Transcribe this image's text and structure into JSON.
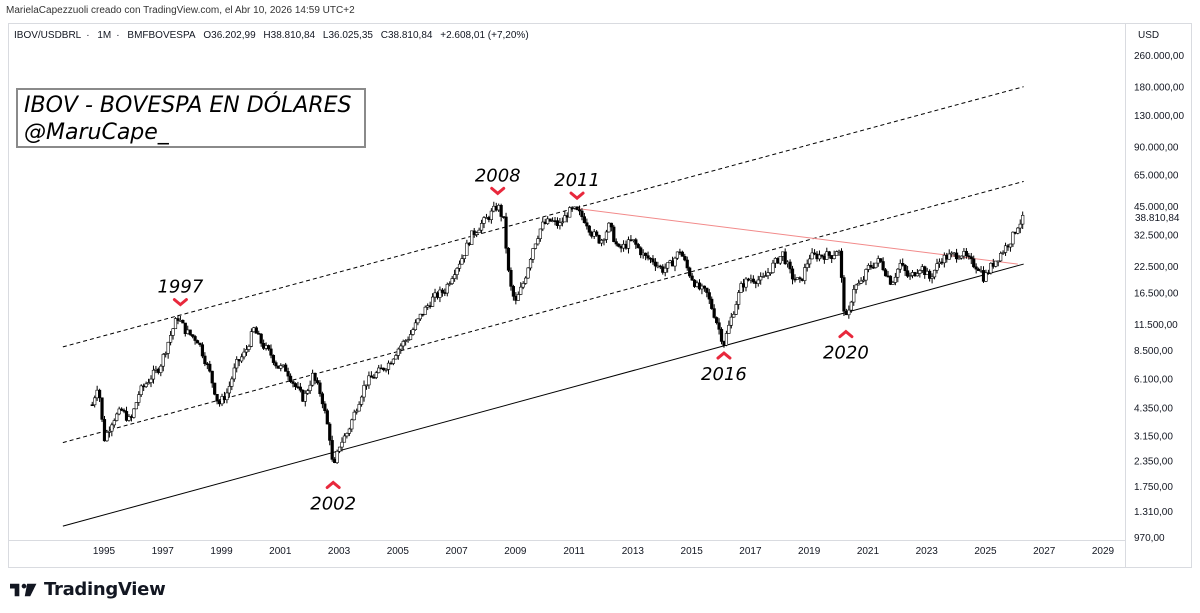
{
  "credit": "MarielaCapezzuoli creado con TradingView.com, el Abr 10, 2026 14:59 UTC+2",
  "legend": {
    "symbol": "IBOV/USDBRL",
    "interval": "1M",
    "exchange": "BMFBOVESPA",
    "open": "O36.202,99",
    "high": "H38.810,84",
    "low": "L36.025,35",
    "close": "C38.810,84",
    "change": "+2.608,01 (+7,20%)"
  },
  "currency": "USD",
  "title_lines": [
    "IBOV - BOVESPA EN DÓLARES",
    "@MaruCape_"
  ],
  "footer": {
    "brand": "TradingView"
  },
  "colors": {
    "up": "#ffffff",
    "down": "#000000",
    "marker": "#e8283c",
    "resistance": "#f28a8a",
    "channel": "#000000",
    "grid_border": "#d9dbe0"
  },
  "chart_data": {
    "type": "candlestick-line",
    "title": "IBOV - BOVESPA EN DÓLARES",
    "scale": "log",
    "ylim": [
      970,
      260000
    ],
    "xlim": [
      1993.5,
      2030.0
    ],
    "y_tick_labels": [
      "260.000,00",
      "180.000,00",
      "130.000,00",
      "90.000,00",
      "65.000,00",
      "45.000,00",
      "32.500,00",
      "22.500,00",
      "16.500,00",
      "11.500,00",
      "8.500,00",
      "6.100,00",
      "4.350,00",
      "3.150,00",
      "2.350,00",
      "1.750,00",
      "1.310,00",
      "970,00"
    ],
    "y_ticks": [
      260000,
      180000,
      130000,
      90000,
      65000,
      45000,
      32500,
      22500,
      16500,
      11500,
      8500,
      6100,
      4350,
      3150,
      2350,
      1750,
      1310,
      970
    ],
    "x_tick_labels": [
      "1995",
      "1997",
      "1999",
      "2001",
      "2003",
      "2005",
      "2007",
      "2009",
      "2011",
      "2013",
      "2015",
      "2017",
      "2019",
      "2021",
      "2023",
      "2025",
      "2027",
      "2029"
    ],
    "x_ticks": [
      1995,
      1997,
      1999,
      2001,
      2003,
      2005,
      2007,
      2009,
      2011,
      2013,
      2015,
      2017,
      2019,
      2021,
      2023,
      2025,
      2027,
      2029
    ],
    "last_price": 38810.84,
    "last_price_label": "38.810,84",
    "price_path": [
      [
        1994.6,
        4500
      ],
      [
        1994.8,
        5800
      ],
      [
        1995.0,
        3000
      ],
      [
        1995.3,
        3800
      ],
      [
        1995.6,
        4200
      ],
      [
        1995.9,
        3700
      ],
      [
        1996.2,
        5200
      ],
      [
        1996.6,
        6200
      ],
      [
        1996.9,
        7000
      ],
      [
        1997.2,
        9500
      ],
      [
        1997.5,
        12500
      ],
      [
        1997.8,
        10500
      ],
      [
        1998.2,
        9500
      ],
      [
        1998.6,
        6500
      ],
      [
        1998.9,
        4500
      ],
      [
        1999.2,
        5200
      ],
      [
        1999.5,
        7200
      ],
      [
        1999.8,
        8200
      ],
      [
        2000.1,
        10800
      ],
      [
        2000.4,
        9000
      ],
      [
        2000.7,
        8000
      ],
      [
        2000.9,
        7000
      ],
      [
        2001.2,
        6800
      ],
      [
        2001.5,
        5600
      ],
      [
        2001.8,
        4800
      ],
      [
        2002.1,
        6300
      ],
      [
        2002.4,
        5000
      ],
      [
        2002.7,
        3000
      ],
      [
        2002.8,
        2050
      ],
      [
        2003.0,
        2800
      ],
      [
        2003.3,
        3300
      ],
      [
        2003.6,
        4400
      ],
      [
        2003.9,
        5800
      ],
      [
        2004.3,
        6500
      ],
      [
        2004.7,
        7300
      ],
      [
        2005.0,
        8600
      ],
      [
        2005.4,
        10000
      ],
      [
        2005.8,
        12800
      ],
      [
        2006.2,
        15500
      ],
      [
        2006.6,
        17000
      ],
      [
        2006.9,
        21000
      ],
      [
        2007.2,
        25000
      ],
      [
        2007.5,
        32000
      ],
      [
        2007.8,
        36000
      ],
      [
        2008.1,
        40000
      ],
      [
        2008.4,
        45500
      ],
      [
        2008.6,
        38000
      ],
      [
        2008.8,
        18500
      ],
      [
        2009.0,
        14500
      ],
      [
        2009.3,
        19000
      ],
      [
        2009.6,
        28000
      ],
      [
        2009.9,
        36000
      ],
      [
        2010.2,
        38000
      ],
      [
        2010.5,
        36000
      ],
      [
        2010.8,
        42000
      ],
      [
        2011.0,
        43000
      ],
      [
        2011.2,
        41000
      ],
      [
        2011.4,
        38000
      ],
      [
        2011.6,
        33000
      ],
      [
        2011.9,
        30000
      ],
      [
        2012.2,
        36000
      ],
      [
        2012.5,
        27000
      ],
      [
        2012.8,
        29000
      ],
      [
        2013.0,
        30000
      ],
      [
        2013.4,
        25000
      ],
      [
        2013.7,
        24000
      ],
      [
        2014.0,
        21500
      ],
      [
        2014.3,
        23000
      ],
      [
        2014.6,
        27000
      ],
      [
        2014.9,
        21000
      ],
      [
        2015.2,
        17500
      ],
      [
        2015.5,
        16500
      ],
      [
        2015.8,
        12500
      ],
      [
        2016.0,
        10000
      ],
      [
        2016.1,
        9200
      ],
      [
        2016.4,
        13000
      ],
      [
        2016.7,
        18000
      ],
      [
        2017.0,
        19500
      ],
      [
        2017.4,
        19000
      ],
      [
        2017.8,
        23000
      ],
      [
        2018.1,
        26000
      ],
      [
        2018.4,
        20000
      ],
      [
        2018.7,
        18500
      ],
      [
        2019.0,
        25000
      ],
      [
        2019.4,
        25500
      ],
      [
        2019.8,
        25500
      ],
      [
        2020.0,
        28000
      ],
      [
        2020.2,
        13000
      ],
      [
        2020.3,
        11800
      ],
      [
        2020.5,
        17500
      ],
      [
        2020.8,
        18500
      ],
      [
        2021.0,
        22000
      ],
      [
        2021.4,
        24000
      ],
      [
        2021.8,
        18500
      ],
      [
        2022.1,
        23000
      ],
      [
        2022.4,
        19500
      ],
      [
        2022.8,
        22500
      ],
      [
        2023.1,
        19500
      ],
      [
        2023.5,
        24500
      ],
      [
        2023.9,
        25500
      ],
      [
        2024.2,
        26000
      ],
      [
        2024.5,
        23500
      ],
      [
        2024.8,
        22000
      ],
      [
        2024.95,
        19500
      ],
      [
        2025.2,
        22500
      ],
      [
        2025.6,
        27000
      ],
      [
        2025.9,
        31000
      ],
      [
        2026.1,
        36200
      ],
      [
        2026.28,
        38810
      ]
    ],
    "lines": {
      "support": [
        [
          1993.6,
          1100
        ],
        [
          2026.3,
          23000
        ]
      ],
      "channel_mid": [
        [
          1993.6,
          2900
        ],
        [
          2026.3,
          60000
        ]
      ],
      "channel_top": [
        [
          1993.6,
          8800
        ],
        [
          2026.3,
          180000
        ]
      ],
      "resistance": [
        [
          2011.0,
          44000
        ],
        [
          2026.1,
          23000
        ]
      ]
    },
    "annotations": [
      {
        "label": "1997",
        "x": 1997.6,
        "y": 12800,
        "marker": "down",
        "pos": "above"
      },
      {
        "label": "2008",
        "x": 2008.4,
        "y": 46500,
        "marker": "down",
        "pos": "above"
      },
      {
        "label": "2011",
        "x": 2011.1,
        "y": 44000,
        "marker": "down",
        "pos": "above"
      },
      {
        "label": "2002",
        "x": 2002.8,
        "y": 2050,
        "marker": "up",
        "pos": "below"
      },
      {
        "label": "2016",
        "x": 2016.1,
        "y": 9200,
        "marker": "up",
        "pos": "below"
      },
      {
        "label": "2020",
        "x": 2020.25,
        "y": 11800,
        "marker": "up",
        "pos": "below"
      }
    ]
  }
}
